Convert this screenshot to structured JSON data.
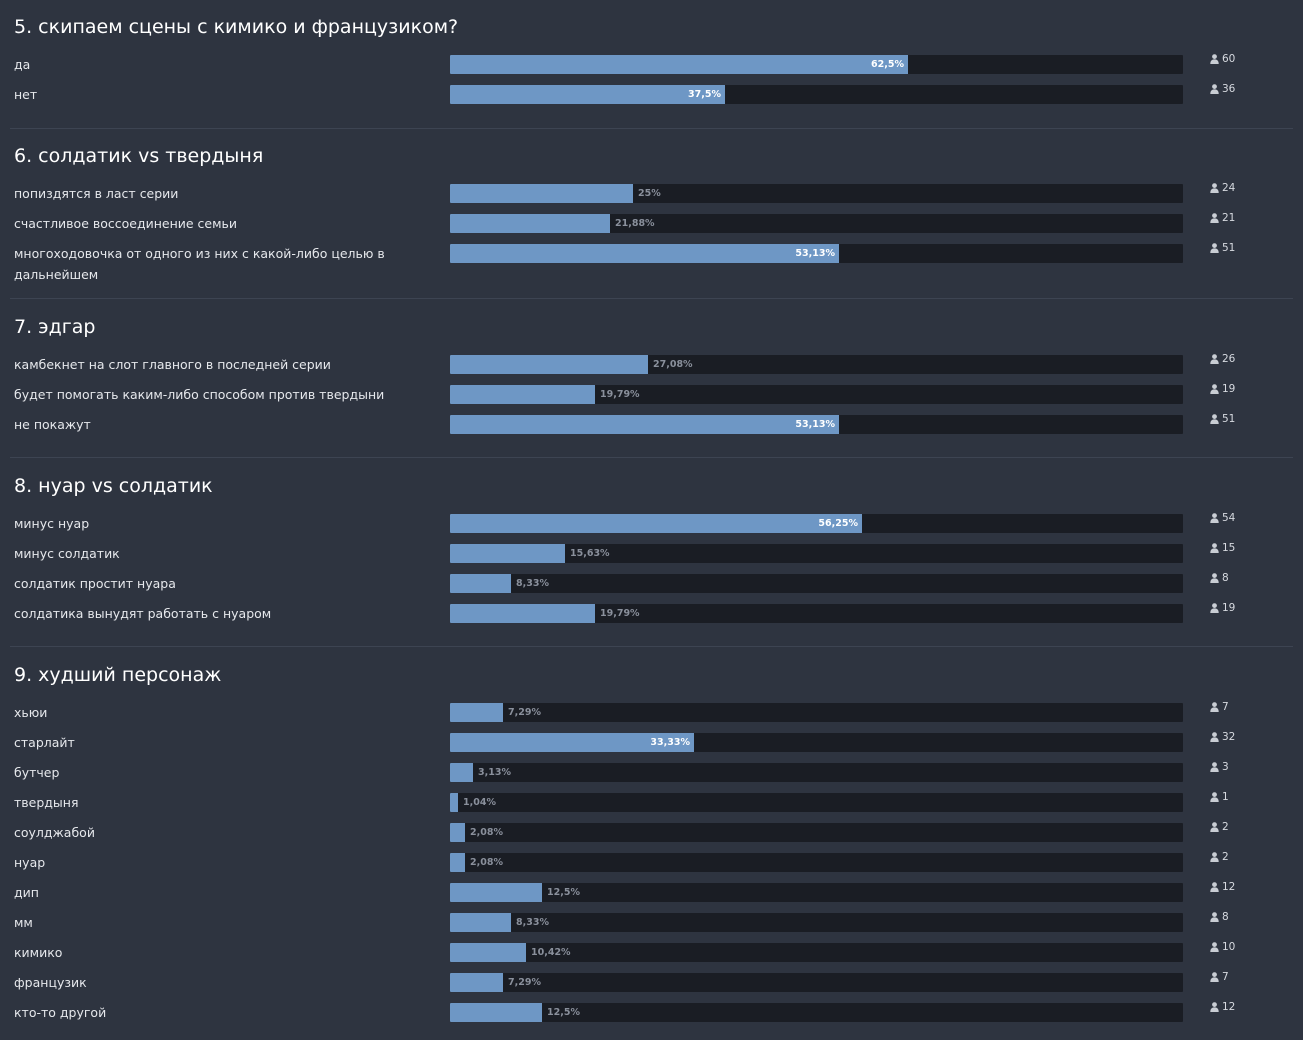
{
  "questions": [
    {
      "title": "5. скипаем сцены с кимико и французиком?",
      "answers": [
        {
          "label": "да",
          "percent": 62.5,
          "percent_text": "62,5%",
          "votes": "60"
        },
        {
          "label": "нет",
          "percent": 37.5,
          "percent_text": "37,5%",
          "votes": "36"
        }
      ]
    },
    {
      "title": "6. солдатик vs твердыня",
      "answers": [
        {
          "label": "попиздятся в ласт серии",
          "percent": 25,
          "percent_text": "25%",
          "votes": "24"
        },
        {
          "label": "счастливое воссоединение семьи",
          "percent": 21.88,
          "percent_text": "21,88%",
          "votes": "21"
        },
        {
          "label": "многоходовочка от одного из них с какой-либо целью в дальнейшем",
          "percent": 53.13,
          "percent_text": "53,13%",
          "votes": "51"
        }
      ]
    },
    {
      "title": "7. эдгар",
      "answers": [
        {
          "label": "камбекнет на слот главного в последней серии",
          "percent": 27.08,
          "percent_text": "27,08%",
          "votes": "26"
        },
        {
          "label": "будет помогать каким-либо способом против твердыни",
          "percent": 19.79,
          "percent_text": "19,79%",
          "votes": "19"
        },
        {
          "label": "не покажут",
          "percent": 53.13,
          "percent_text": "53,13%",
          "votes": "51"
        }
      ]
    },
    {
      "title": "8. нуар vs солдатик",
      "answers": [
        {
          "label": "минус нуар",
          "percent": 56.25,
          "percent_text": "56,25%",
          "votes": "54"
        },
        {
          "label": "минус солдатик",
          "percent": 15.63,
          "percent_text": "15,63%",
          "votes": "15"
        },
        {
          "label": "солдатик простит нуара",
          "percent": 8.33,
          "percent_text": "8,33%",
          "votes": "8"
        },
        {
          "label": "солдатика вынудят работать с нуаром",
          "percent": 19.79,
          "percent_text": "19,79%",
          "votes": "19"
        }
      ]
    },
    {
      "title": "9. худший персонаж",
      "answers": [
        {
          "label": "хьюи",
          "percent": 7.29,
          "percent_text": "7,29%",
          "votes": "7"
        },
        {
          "label": "старлайт",
          "percent": 33.33,
          "percent_text": "33,33%",
          "votes": "32"
        },
        {
          "label": "бутчер",
          "percent": 3.13,
          "percent_text": "3,13%",
          "votes": "3"
        },
        {
          "label": "твердыня",
          "percent": 1.04,
          "percent_text": "1,04%",
          "votes": "1"
        },
        {
          "label": "соулджабой",
          "percent": 2.08,
          "percent_text": "2,08%",
          "votes": "2"
        },
        {
          "label": "нуар",
          "percent": 2.08,
          "percent_text": "2,08%",
          "votes": "2"
        },
        {
          "label": "дип",
          "percent": 12.5,
          "percent_text": "12,5%",
          "votes": "12"
        },
        {
          "label": "мм",
          "percent": 8.33,
          "percent_text": "8,33%",
          "votes": "8"
        },
        {
          "label": "кимико",
          "percent": 10.42,
          "percent_text": "10,42%",
          "votes": "10"
        },
        {
          "label": "французик",
          "percent": 7.29,
          "percent_text": "7,29%",
          "votes": "7"
        },
        {
          "label": "кто-то другой",
          "percent": 12.5,
          "percent_text": "12,5%",
          "votes": "12"
        }
      ]
    }
  ],
  "icons": {
    "votes": "user-icon"
  },
  "colors": {
    "bar_fill": "#6e97c5",
    "bar_track": "#1a1d24",
    "background": "#2e3440"
  }
}
